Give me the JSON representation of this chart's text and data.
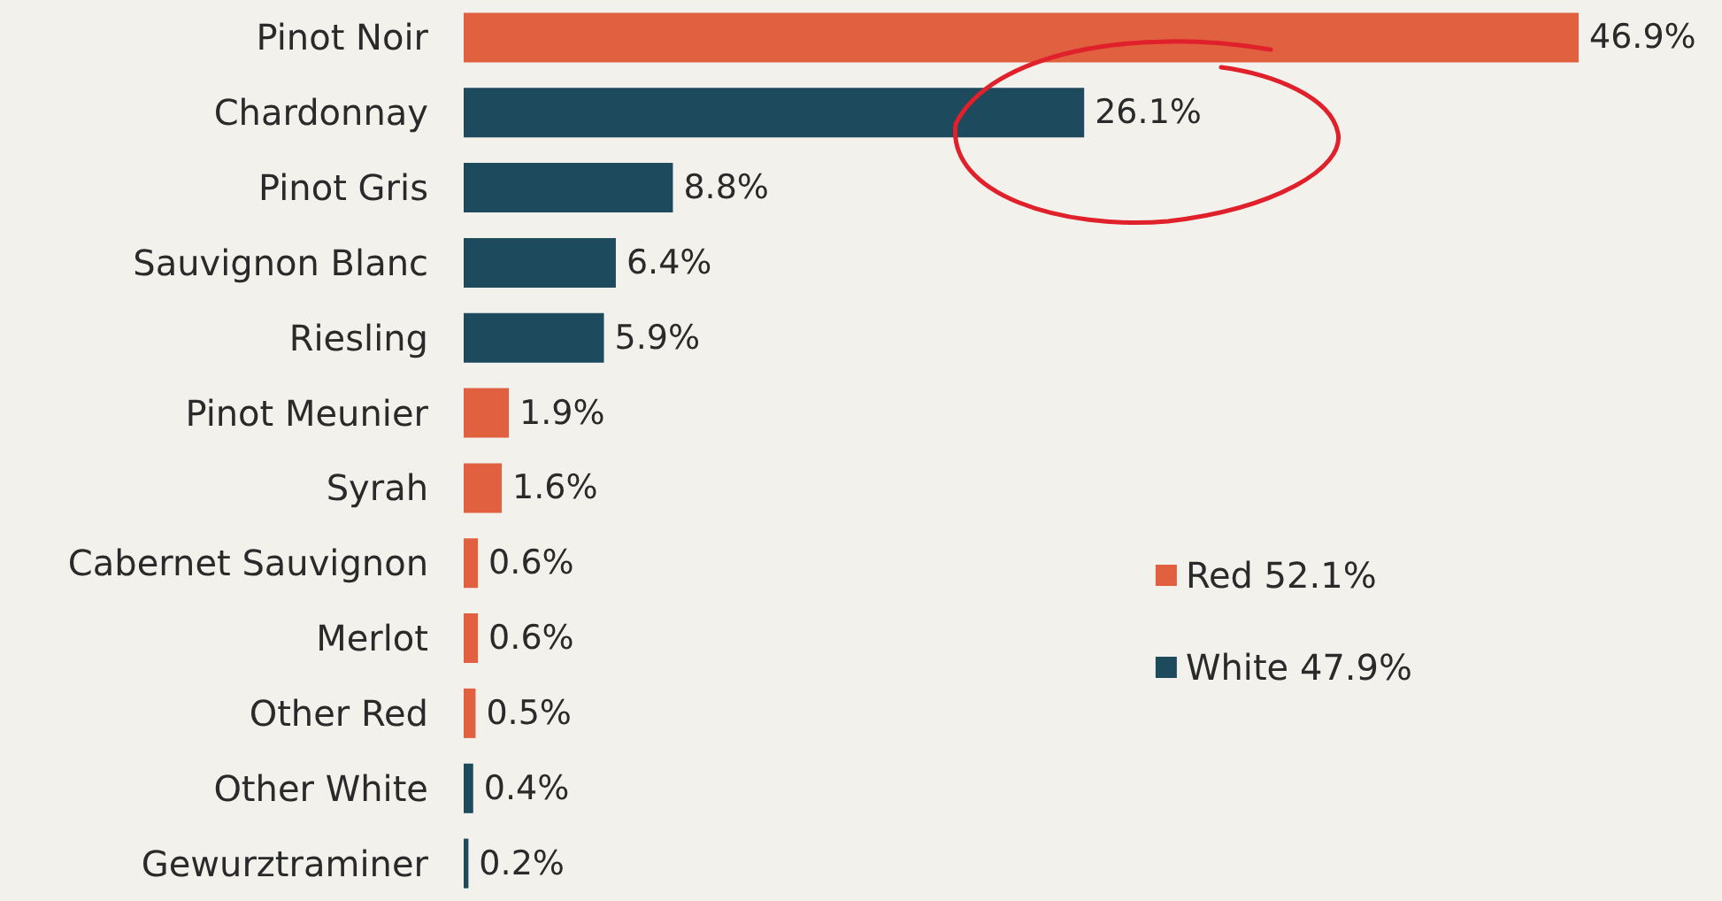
{
  "chart_data": {
    "type": "bar",
    "orientation": "horizontal",
    "stacked": true,
    "legend": "right",
    "categories": [
      "Pinot Noir",
      "Chardonnay",
      "Pinot Gris",
      "Sauvignon Blanc",
      "Riesling",
      "Pinot Meunier",
      "Syrah",
      "Cabernet Sauvignon",
      "Merlot",
      "Other Red",
      "Other White",
      "Gewurztraminer"
    ],
    "series": [
      {
        "name": "Red 52.1%",
        "color": "#e0603f",
        "values": [
          46.9,
          null,
          null,
          null,
          null,
          1.9,
          1.6,
          0.6,
          0.6,
          0.5,
          null,
          null
        ],
        "value_labels": [
          "46.9%",
          null,
          null,
          null,
          null,
          "1.9%",
          "1.6%",
          "0.6%",
          "0.6%",
          "0.5%",
          null,
          null
        ]
      },
      {
        "name": "White 47.9%",
        "color": "#1d4a5c",
        "values": [
          null,
          26.1,
          8.8,
          6.4,
          5.9,
          null,
          null,
          null,
          null,
          null,
          0.4,
          0.2
        ],
        "value_labels": [
          null,
          "26.1%",
          "8.8%",
          "6.4%",
          "5.9%",
          null,
          null,
          null,
          null,
          null,
          "0.4%",
          "0.2%"
        ]
      }
    ]
  }
}
